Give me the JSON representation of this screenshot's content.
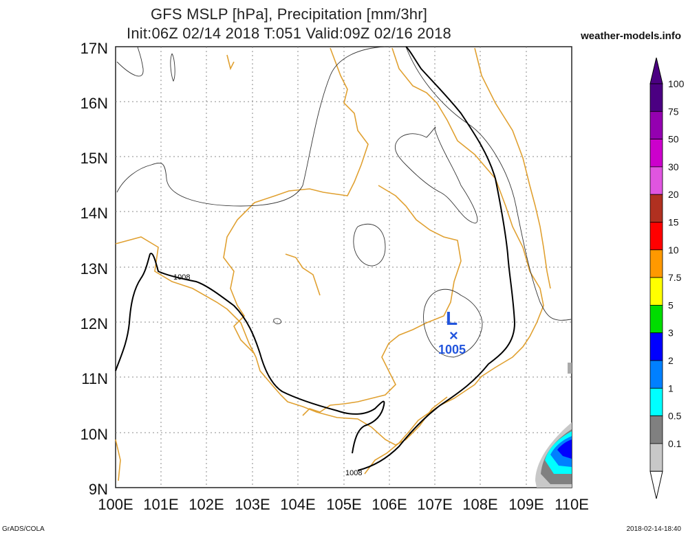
{
  "title_line1": "GFS MSLP [hPa], Precipitation [mm/3hr]",
  "title_line2": "Init:06Z 02/14 2018 T:051 Valid:09Z 02/16 2018",
  "site": "weather-models.info",
  "footer_left": "GrADS/COLA",
  "footer_right": "2018-02-14-18:40",
  "lat_labels": [
    "17N",
    "16N",
    "15N",
    "14N",
    "13N",
    "12N",
    "11N",
    "10N",
    "9N"
  ],
  "lon_labels": [
    "100E",
    "101E",
    "102E",
    "103E",
    "104E",
    "105E",
    "106E",
    "107E",
    "108E",
    "109E",
    "110E"
  ],
  "isobar_labels": [
    "1008",
    "1008"
  ],
  "low": {
    "symbol": "L",
    "marker": "×",
    "pressure": "1005"
  },
  "colorbar": {
    "labels": [
      "100",
      "75",
      "50",
      "30",
      "20",
      "15",
      "10",
      "7.5",
      "5",
      "3",
      "2",
      "1",
      "0.5",
      "0.1"
    ],
    "colors": [
      "#4b0082",
      "#9400b0",
      "#cc00cc",
      "#e055e0",
      "#b03020",
      "#ff0000",
      "#ff9900",
      "#ffff00",
      "#00dd00",
      "#0000ff",
      "#0080ff",
      "#00ffff",
      "#808080",
      "#c8c8c8"
    ]
  }
}
